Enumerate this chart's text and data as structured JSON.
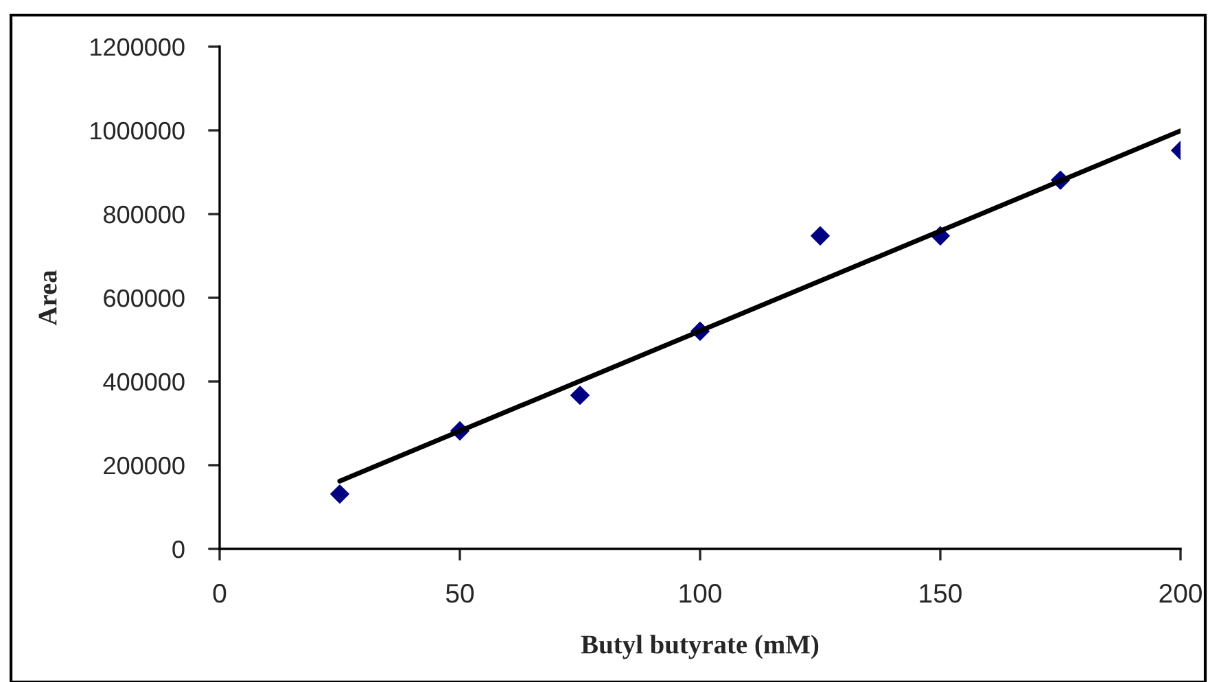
{
  "chart_data": {
    "type": "scatter",
    "xlabel": "Butyl butyrate (mM)",
    "ylabel": "Area",
    "xlim": [
      0,
      200
    ],
    "xticks": [
      0,
      50,
      100,
      150,
      200
    ],
    "ylim": [
      0,
      1200000
    ],
    "yticks": [
      0,
      200000,
      400000,
      600000,
      800000,
      1000000,
      1200000
    ],
    "grid": false,
    "legend": false,
    "series": [
      {
        "color": "#000080",
        "marker": "diamond",
        "x": [
          25,
          50,
          75,
          100,
          125,
          150,
          175,
          200
        ],
        "values": [
          131000,
          282000,
          367000,
          520000,
          748000,
          748000,
          881000,
          952000
        ]
      },
      {
        "type": "line",
        "color": "#000000",
        "marker": "none",
        "x": [
          25,
          200
        ],
        "values": [
          162000,
          999000
        ],
        "line_style": "solid"
      }
    ]
  }
}
